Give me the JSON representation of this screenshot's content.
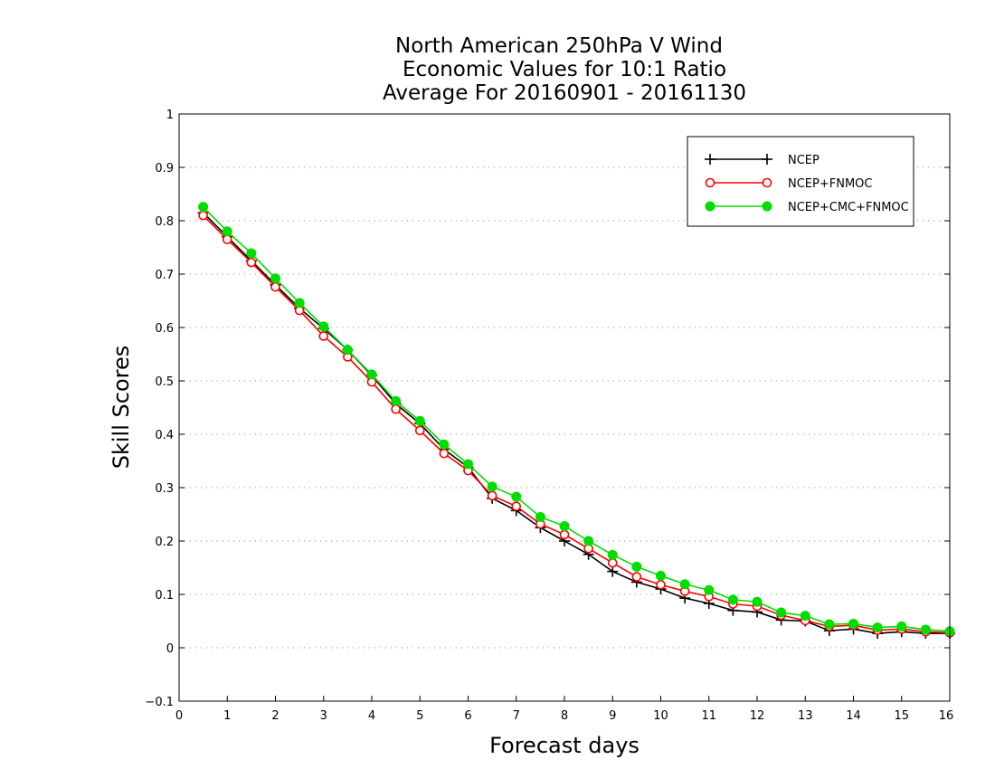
{
  "chart_data": {
    "type": "line",
    "title_lines": [
      "North American 250hPa V Wind",
      "Economic Values for 10:1 Ratio",
      "Average For 20160901 - 20161130"
    ],
    "xlabel": "Forecast days",
    "ylabel": "Skill Scores",
    "xlim": [
      0,
      16
    ],
    "ylim": [
      -0.1,
      1
    ],
    "x_ticks": [
      0,
      1,
      2,
      3,
      4,
      5,
      6,
      7,
      8,
      9,
      10,
      11,
      12,
      13,
      14,
      15,
      16
    ],
    "y_ticks": [
      -0.1,
      0,
      0.1,
      0.2,
      0.3,
      0.4,
      0.5,
      0.6,
      0.7,
      0.8,
      0.9,
      1
    ],
    "y_tick_labels": [
      "−0.1",
      "0",
      "0.1",
      "0.2",
      "0.3",
      "0.4",
      "0.5",
      "0.6",
      "0.7",
      "0.8",
      "0.9",
      "1"
    ],
    "grid": "horizontal dotted",
    "legend_position": "top-right",
    "x": [
      0.5,
      1,
      1.5,
      2,
      2.5,
      3,
      3.5,
      4,
      4.5,
      5,
      5.5,
      6,
      6.5,
      7,
      7.5,
      8,
      8.5,
      9,
      9.5,
      10,
      10.5,
      11,
      11.5,
      12,
      12.5,
      13,
      13.5,
      14,
      14.5,
      15,
      15.5,
      16
    ],
    "series": [
      {
        "name": "NCEP",
        "color": "#000000",
        "marker": "plus",
        "values": [
          0.815,
          0.77,
          0.725,
          0.68,
          0.636,
          0.598,
          0.558,
          0.51,
          0.457,
          0.42,
          0.372,
          0.338,
          0.28,
          0.257,
          0.225,
          0.2,
          0.175,
          0.143,
          0.123,
          0.11,
          0.093,
          0.083,
          0.07,
          0.067,
          0.052,
          0.05,
          0.032,
          0.035,
          0.027,
          0.03,
          0.027,
          0.027
        ]
      },
      {
        "name": "NCEP+FNMOC",
        "color": "#ff0000",
        "marker": "open-circle",
        "values": [
          0.81,
          0.765,
          0.722,
          0.676,
          0.632,
          0.584,
          0.545,
          0.498,
          0.447,
          0.407,
          0.364,
          0.332,
          0.285,
          0.265,
          0.232,
          0.212,
          0.186,
          0.159,
          0.133,
          0.118,
          0.106,
          0.096,
          0.082,
          0.078,
          0.061,
          0.051,
          0.04,
          0.042,
          0.033,
          0.035,
          0.03,
          0.028
        ]
      },
      {
        "name": "NCEP+CMC+FNMOC",
        "color": "#00dd00",
        "marker": "filled-circle",
        "values": [
          0.826,
          0.78,
          0.739,
          0.692,
          0.646,
          0.602,
          0.558,
          0.512,
          0.462,
          0.425,
          0.381,
          0.344,
          0.302,
          0.283,
          0.245,
          0.228,
          0.2,
          0.174,
          0.152,
          0.135,
          0.119,
          0.108,
          0.09,
          0.086,
          0.066,
          0.06,
          0.044,
          0.045,
          0.038,
          0.04,
          0.034,
          0.031
        ]
      }
    ]
  }
}
